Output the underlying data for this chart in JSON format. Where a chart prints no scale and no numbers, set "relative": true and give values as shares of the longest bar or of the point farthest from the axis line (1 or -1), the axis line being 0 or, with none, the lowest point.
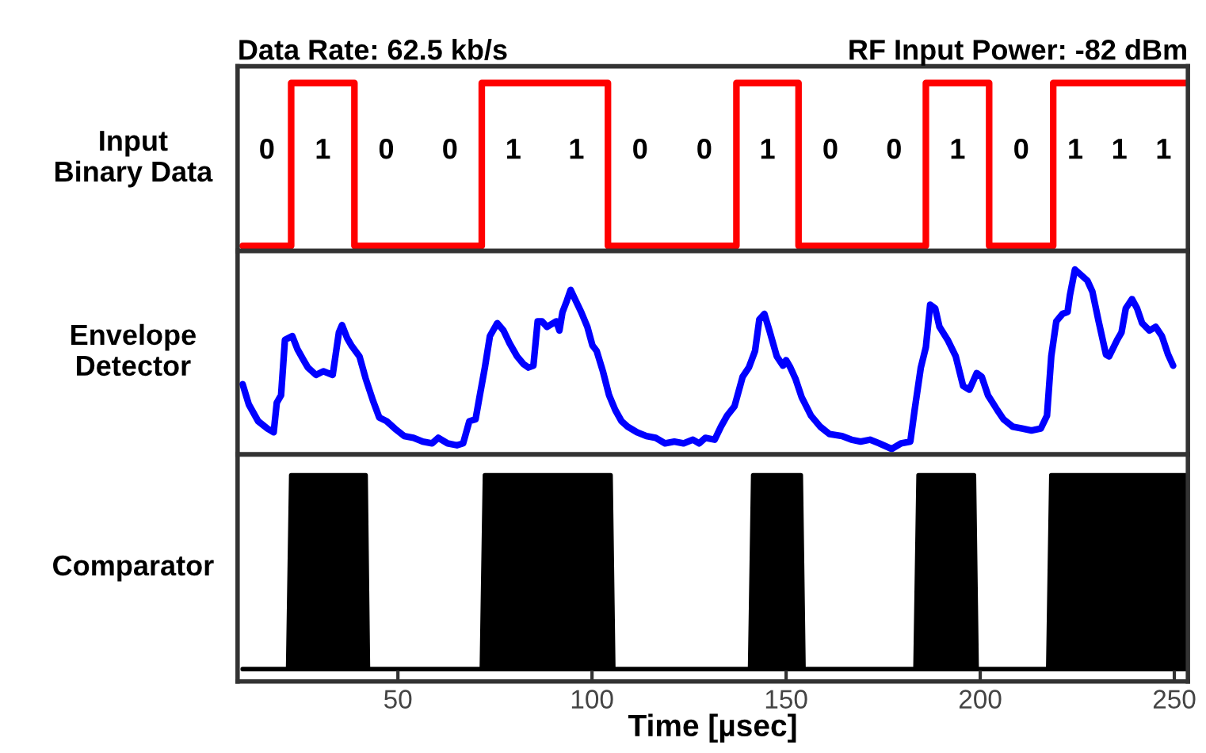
{
  "chart_data": [
    {
      "type": "line",
      "title": "Data Rate: 62.5 kb/s",
      "subtitle": "RF Input Power: -82 dBm",
      "ylabel": "Input\nBinary Data",
      "relative": true,
      "xlim": [
        8.7,
        253.5
      ],
      "tick_labels": false,
      "x": [
        10.0,
        22.5,
        22.5,
        38.8,
        38.8,
        71.6,
        71.6,
        104.1,
        104.1,
        137.2,
        137.2,
        153.2,
        153.2,
        186.0,
        186.0,
        202.3,
        202.3,
        218.8,
        218.8,
        252.9
      ],
      "series": [
        {
          "color": "#ff0000",
          "values": [
            0.03,
            0.03,
            1,
            1,
            0.03,
            0.03,
            1,
            1,
            0.03,
            0.03,
            1,
            1,
            0.03,
            0.03,
            1,
            1,
            0.03,
            0.03,
            1,
            1
          ]
        }
      ],
      "annotations": [
        "0",
        "1",
        "0",
        "0",
        "1",
        "1",
        "0",
        "0",
        "1",
        "0",
        "0",
        "1",
        "0",
        "1",
        "1",
        "1"
      ]
    },
    {
      "type": "line",
      "ylabel": "Envelope\nDetector",
      "relative": true,
      "xlim": [
        8.7,
        253.5
      ],
      "tick_labels": false,
      "x": [
        10.0,
        11.6,
        14.0,
        16.4,
        18.0,
        18.8,
        19.9,
        20.9,
        22.8,
        24.1,
        25.7,
        26.8,
        28.9,
        30.8,
        33.2,
        34.8,
        35.6,
        36.9,
        38.0,
        40.1,
        41.7,
        43.6,
        45.2,
        47.1,
        49.2,
        51.6,
        54.0,
        56.4,
        58.8,
        60.4,
        62.8,
        65.2,
        66.8,
        68.4,
        70.0,
        71.1,
        72.4,
        73.7,
        75.6,
        77.2,
        78.8,
        80.7,
        82.3,
        83.6,
        84.9,
        86.0,
        87.1,
        88.4,
        90.8,
        91.6,
        92.4,
        93.5,
        94.5,
        95.6,
        97.2,
        98.8,
        100.1,
        101.2,
        102.8,
        104.4,
        106.0,
        107.6,
        109.2,
        111.6,
        114.0,
        116.4,
        118.8,
        121.2,
        123.6,
        126.0,
        127.6,
        129.2,
        131.6,
        133.2,
        134.8,
        136.7,
        138.8,
        140.4,
        142.0,
        143.1,
        144.4,
        145.7,
        147.6,
        149.2,
        150.0,
        151.1,
        152.4,
        154.0,
        156.4,
        158.8,
        161.2,
        164.4,
        166.8,
        169.2,
        171.6,
        174.0,
        177.2,
        179.6,
        182.0,
        183.1,
        184.7,
        186.0,
        187.1,
        188.4,
        189.5,
        191.6,
        193.7,
        195.6,
        197.2,
        199.1,
        200.4,
        202.0,
        204.4,
        206.0,
        208.4,
        210.8,
        213.2,
        215.6,
        217.2,
        218.3,
        219.6,
        221.2,
        222.5,
        223.1,
        224.4,
        226.0,
        227.6,
        228.9,
        230.5,
        232.4,
        233.2,
        235.3,
        236.4,
        237.5,
        239.1,
        240.4,
        241.7,
        243.6,
        245.2,
        246.8,
        248.4,
        249.7
      ],
      "series": [
        {
          "color": "#0000ff",
          "values": [
            0.38,
            0.27,
            0.18,
            0.14,
            0.12,
            0.28,
            0.32,
            0.62,
            0.64,
            0.57,
            0.51,
            0.47,
            0.43,
            0.45,
            0.43,
            0.66,
            0.7,
            0.63,
            0.59,
            0.53,
            0.41,
            0.29,
            0.2,
            0.18,
            0.14,
            0.1,
            0.09,
            0.07,
            0.06,
            0.09,
            0.06,
            0.05,
            0.06,
            0.18,
            0.19,
            0.32,
            0.47,
            0.64,
            0.71,
            0.67,
            0.6,
            0.53,
            0.49,
            0.47,
            0.48,
            0.72,
            0.72,
            0.69,
            0.72,
            0.67,
            0.77,
            0.83,
            0.89,
            0.84,
            0.77,
            0.69,
            0.59,
            0.56,
            0.45,
            0.32,
            0.24,
            0.18,
            0.15,
            0.12,
            0.1,
            0.09,
            0.06,
            0.07,
            0.06,
            0.08,
            0.06,
            0.09,
            0.08,
            0.15,
            0.21,
            0.26,
            0.42,
            0.47,
            0.56,
            0.73,
            0.76,
            0.67,
            0.53,
            0.48,
            0.51,
            0.47,
            0.41,
            0.31,
            0.21,
            0.15,
            0.11,
            0.1,
            0.08,
            0.07,
            0.08,
            0.06,
            0.03,
            0.06,
            0.07,
            0.24,
            0.47,
            0.58,
            0.81,
            0.79,
            0.69,
            0.62,
            0.53,
            0.37,
            0.35,
            0.44,
            0.42,
            0.32,
            0.24,
            0.19,
            0.15,
            0.14,
            0.13,
            0.14,
            0.21,
            0.53,
            0.72,
            0.76,
            0.77,
            0.86,
            1,
            0.97,
            0.94,
            0.88,
            0.72,
            0.54,
            0.53,
            0.62,
            0.66,
            0.79,
            0.84,
            0.79,
            0.71,
            0.67,
            0.69,
            0.64,
            0.54,
            0.48
          ]
        }
      ]
    },
    {
      "type": "area",
      "ylabel": "Comparator",
      "xlabel": "Time [µsec]",
      "relative": true,
      "xlim": [
        8.7,
        253.5
      ],
      "xticks": [
        50,
        100,
        150,
        200,
        250
      ],
      "tick_labels": "x",
      "x": [
        10.0,
        21.7,
        22.5,
        41.7,
        42.3,
        71.6,
        72.4,
        104.8,
        105.5,
        140.7,
        141.5,
        153.8,
        154.5,
        183.3,
        184.1,
        198.4,
        199.1,
        217.5,
        218.3,
        252.9
      ],
      "series": [
        {
          "color": "#000000",
          "values": [
            0.06,
            0.06,
            1,
            1,
            0.06,
            0.06,
            1,
            1,
            0.06,
            0.06,
            1,
            1,
            0.06,
            0.06,
            1,
            1,
            0.06,
            0.06,
            1,
            1
          ]
        }
      ]
    }
  ]
}
